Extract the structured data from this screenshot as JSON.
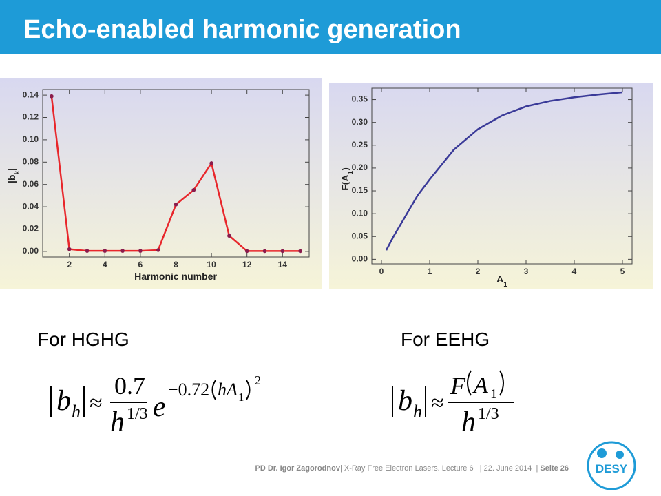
{
  "title": "Echo-enabled harmonic generation",
  "chart_data": [
    {
      "type": "line",
      "markers": true,
      "color": "#e8262b",
      "marker_color": "#8a1c4c",
      "xlabel": "Harmonic number",
      "ylabel": {
        "text": "|b",
        "sub": "k",
        "close": "|"
      },
      "x": [
        1,
        2,
        3,
        4,
        5,
        6,
        7,
        8,
        9,
        10,
        11,
        12,
        13,
        14,
        15
      ],
      "y": [
        0.139,
        0.002,
        0.0005,
        0.0005,
        0.0005,
        0.0005,
        0.0012,
        0.042,
        0.055,
        0.079,
        0.014,
        0.0003,
        0.0003,
        0.0003,
        0.0003
      ],
      "xlim": [
        0.5,
        15.5
      ],
      "ylim": [
        -0.005,
        0.145
      ],
      "xticks": [
        2,
        4,
        6,
        8,
        10,
        12,
        14
      ],
      "yticks": [
        {
          "value": 0,
          "label": "0.00"
        },
        {
          "value": 0.02,
          "label": "0.02"
        },
        {
          "value": 0.04,
          "label": "0.04"
        },
        {
          "value": 0.06,
          "label": "0.06"
        },
        {
          "value": 0.08,
          "label": "0.08"
        },
        {
          "value": 0.1,
          "label": "0.10"
        },
        {
          "value": 0.12,
          "label": "0.12"
        },
        {
          "value": 0.14,
          "label": "0.14"
        }
      ]
    },
    {
      "type": "line",
      "markers": false,
      "color": "#3a3a98",
      "xlabel": {
        "text": "A",
        "sub": "1"
      },
      "ylabel": {
        "text": "F(A",
        "sub": "1",
        "close": ")"
      },
      "x": [
        0.1,
        0.25,
        0.5,
        0.75,
        1,
        1.5,
        2,
        2.5,
        3,
        3.5,
        4,
        4.5,
        5
      ],
      "y": [
        0.02,
        0.05,
        0.095,
        0.14,
        0.175,
        0.24,
        0.285,
        0.315,
        0.335,
        0.347,
        0.355,
        0.361,
        0.366
      ],
      "xlim": [
        -0.2,
        5.2
      ],
      "ylim": [
        -0.01,
        0.375
      ],
      "xticks": [
        0,
        1,
        2,
        3,
        4,
        5
      ],
      "yticks": [
        {
          "value": 0,
          "label": "0.00"
        },
        {
          "value": 0.05,
          "label": "0.05"
        },
        {
          "value": 0.1,
          "label": "0.10"
        },
        {
          "value": 0.15,
          "label": "0.15"
        },
        {
          "value": 0.2,
          "label": "0.20"
        },
        {
          "value": 0.25,
          "label": "0.25"
        },
        {
          "value": 0.3,
          "label": "0.30"
        },
        {
          "value": 0.35,
          "label": "0.35"
        }
      ]
    }
  ],
  "captions": [
    "For HGHG",
    "For EEHG"
  ],
  "formula_hghg": {
    "lhs": "b",
    "lhs_sub": "h",
    "relation": "≈",
    "numerator": "0.7",
    "den": "h",
    "den_exp": "1/3",
    "exp_base": "e",
    "exp_coef": "−0.72",
    "exp_inner": "hA",
    "exp_inner_sub": "1",
    "exp_power": "2"
  },
  "formula_eehg": {
    "lhs": "b",
    "lhs_sub": "h",
    "relation": "≈",
    "num_f": "F",
    "num_arg": "A",
    "num_arg_sub": "1",
    "den": "h",
    "den_exp": "1/3"
  },
  "footer": {
    "author": "PD Dr. Igor Zagorodnov",
    "info": "| X-Ray Free Electron Lasers. Lecture 6   | 22. June 2014  | ",
    "page": "Seite 26",
    "logo": "DESY"
  }
}
